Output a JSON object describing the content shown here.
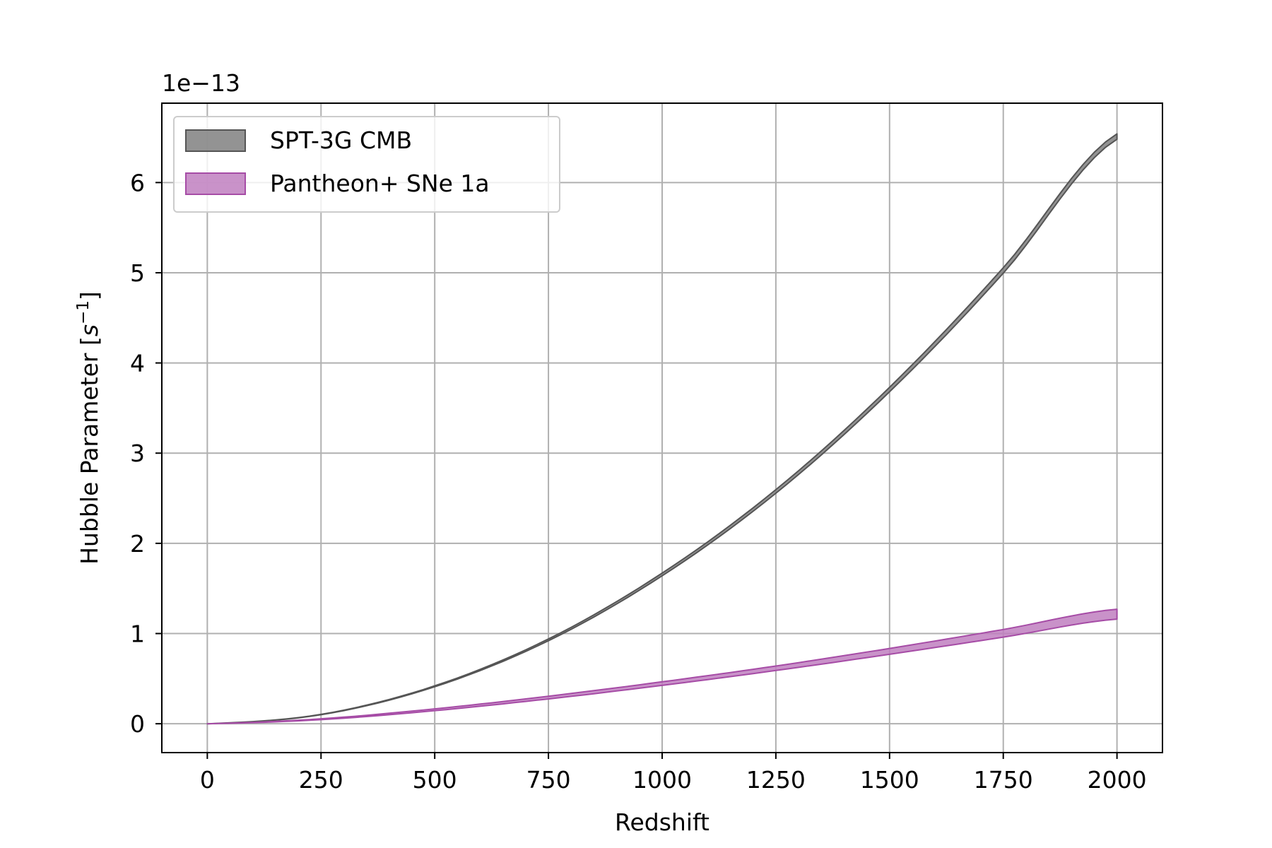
{
  "chart_data": {
    "type": "area",
    "title": "",
    "xlabel": "Redshift",
    "ylabel_main": "Hubble Parameter [",
    "ylabel_symbol": "s",
    "ylabel_exp": "−1",
    "ylabel_close": "]",
    "y_multiplier": "1e−13",
    "xlim": [
      -100,
      2100
    ],
    "ylim": [
      -0.32,
      6.88
    ],
    "xticks": [
      0,
      250,
      500,
      750,
      1000,
      1250,
      1500,
      1750,
      2000
    ],
    "xtick_labels": [
      "0",
      "250",
      "500",
      "750",
      "1000",
      "1250",
      "1500",
      "1750",
      "2000"
    ],
    "yticks": [
      0,
      1,
      2,
      3,
      4,
      5,
      6
    ],
    "ytick_labels": [
      "0",
      "1",
      "2",
      "3",
      "4",
      "5",
      "6"
    ],
    "grid": true,
    "legend_position": "top-left",
    "x": [
      0,
      250,
      500,
      750,
      1000,
      1250,
      1500,
      1750,
      2000
    ],
    "series": [
      {
        "name": "SPT-3G CMB",
        "color": "#808080",
        "edge": "#555555",
        "lower": [
          0,
          0.1,
          0.41,
          0.92,
          1.64,
          2.555,
          3.68,
          4.995,
          6.48
        ],
        "upper": [
          0,
          0.104,
          0.42,
          0.94,
          1.67,
          2.595,
          3.73,
          5.055,
          6.54
        ]
      },
      {
        "name": "Pantheon+ SNe 1a",
        "color": "#bf7fbf",
        "edge": "#a64ca6",
        "lower": [
          0,
          0.045,
          0.145,
          0.275,
          0.425,
          0.59,
          0.77,
          0.96,
          1.16
        ],
        "upper": [
          0,
          0.055,
          0.165,
          0.305,
          0.465,
          0.64,
          0.835,
          1.045,
          1.27
        ]
      }
    ]
  }
}
